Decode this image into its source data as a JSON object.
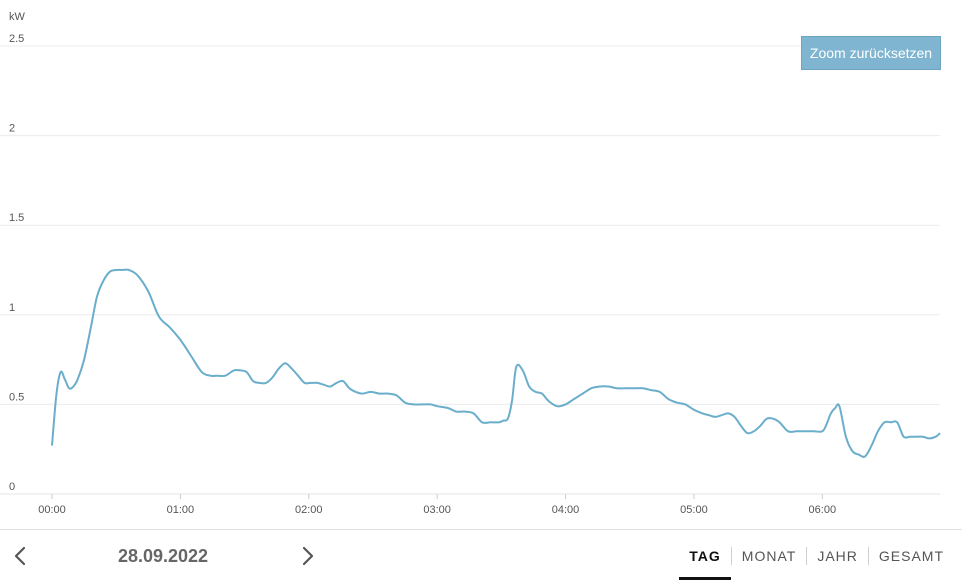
{
  "chart_data": {
    "type": "line",
    "unit": "kW",
    "ylim": [
      0,
      2.5
    ],
    "y_ticks": [
      0,
      0.5,
      1,
      1.5,
      2,
      2.5
    ],
    "y_tick_labels": [
      "0",
      "0.5",
      "1",
      "1.5",
      "2",
      "2.5"
    ],
    "xlim": [
      "00:00",
      "06:55"
    ],
    "x_ticks": [
      "00:00",
      "01:00",
      "02:00",
      "03:00",
      "04:00",
      "05:00",
      "06:00"
    ],
    "grid": true,
    "line_color": "#6aaecb",
    "series": [
      {
        "x": [
          "00:00",
          "00:02",
          "00:04",
          "00:06",
          "00:08",
          "00:10",
          "00:12",
          "00:15",
          "00:18",
          "00:21",
          "00:24",
          "00:27",
          "00:30",
          "00:33",
          "00:36",
          "00:40",
          "00:45",
          "00:50",
          "00:55",
          "01:00",
          "01:05",
          "01:10",
          "01:14",
          "01:17",
          "01:21",
          "01:25",
          "01:28",
          "01:31",
          "01:34",
          "01:37",
          "01:40",
          "01:43",
          "01:46",
          "01:49",
          "01:52",
          "01:55",
          "01:58",
          "02:01",
          "02:04",
          "02:07",
          "02:10",
          "02:13",
          "02:16",
          "02:19",
          "02:22",
          "02:25",
          "02:29",
          "02:33",
          "02:37",
          "02:41",
          "02:45",
          "02:49",
          "02:53",
          "02:57",
          "03:00",
          "03:05",
          "03:09",
          "03:13",
          "03:17",
          "03:21",
          "03:25",
          "03:29",
          "03:31",
          "03:33",
          "03:35",
          "03:37",
          "03:40",
          "03:43",
          "03:46",
          "03:49",
          "03:52",
          "03:56",
          "04:00",
          "04:04",
          "04:08",
          "04:12",
          "04:16",
          "04:20",
          "04:24",
          "04:28",
          "04:32",
          "04:36",
          "04:40",
          "04:44",
          "04:48",
          "04:52",
          "04:56",
          "05:00",
          "05:04",
          "05:07",
          "05:10",
          "05:13",
          "05:16",
          "05:19",
          "05:22",
          "05:25",
          "05:28",
          "05:31",
          "05:34",
          "05:37",
          "05:40",
          "05:44",
          "05:48",
          "05:52",
          "05:56",
          "06:00",
          "06:02",
          "06:04",
          "06:06",
          "06:08",
          "06:11",
          "06:14",
          "06:17",
          "06:20",
          "06:23",
          "06:26",
          "06:29",
          "06:32",
          "06:35",
          "06:38",
          "06:41",
          "06:44",
          "06:47",
          "06:50",
          "06:53",
          "06:55"
        ],
        "values": [
          0.27,
          0.55,
          0.68,
          0.64,
          0.59,
          0.6,
          0.64,
          0.75,
          0.92,
          1.1,
          1.19,
          1.24,
          1.25,
          1.25,
          1.25,
          1.22,
          1.13,
          0.99,
          0.93,
          0.86,
          0.77,
          0.68,
          0.66,
          0.66,
          0.66,
          0.69,
          0.69,
          0.68,
          0.63,
          0.62,
          0.62,
          0.65,
          0.7,
          0.73,
          0.7,
          0.66,
          0.62,
          0.62,
          0.62,
          0.61,
          0.6,
          0.62,
          0.63,
          0.59,
          0.57,
          0.56,
          0.57,
          0.56,
          0.56,
          0.55,
          0.51,
          0.5,
          0.5,
          0.5,
          0.49,
          0.48,
          0.46,
          0.46,
          0.45,
          0.4,
          0.4,
          0.4,
          0.41,
          0.42,
          0.52,
          0.71,
          0.69,
          0.6,
          0.57,
          0.56,
          0.52,
          0.49,
          0.5,
          0.53,
          0.56,
          0.59,
          0.6,
          0.6,
          0.59,
          0.59,
          0.59,
          0.59,
          0.58,
          0.57,
          0.53,
          0.51,
          0.5,
          0.47,
          0.45,
          0.44,
          0.43,
          0.44,
          0.45,
          0.43,
          0.38,
          0.34,
          0.35,
          0.38,
          0.42,
          0.42,
          0.4,
          0.35,
          0.35,
          0.35,
          0.35,
          0.35,
          0.39,
          0.45,
          0.48,
          0.49,
          0.32,
          0.24,
          0.22,
          0.21,
          0.27,
          0.35,
          0.4,
          0.4,
          0.4,
          0.32,
          0.32,
          0.32,
          0.32,
          0.31,
          0.32,
          0.34
        ]
      }
    ]
  },
  "zoom_reset_label": "Zoom zurücksetzen",
  "footer": {
    "date": "28.09.2022",
    "tabs": [
      "TAG",
      "MONAT",
      "JAHR",
      "GESAMT"
    ],
    "active_tab": "TAG"
  },
  "icons": {
    "prev": "chevron-left-icon",
    "next": "chevron-right-icon"
  }
}
